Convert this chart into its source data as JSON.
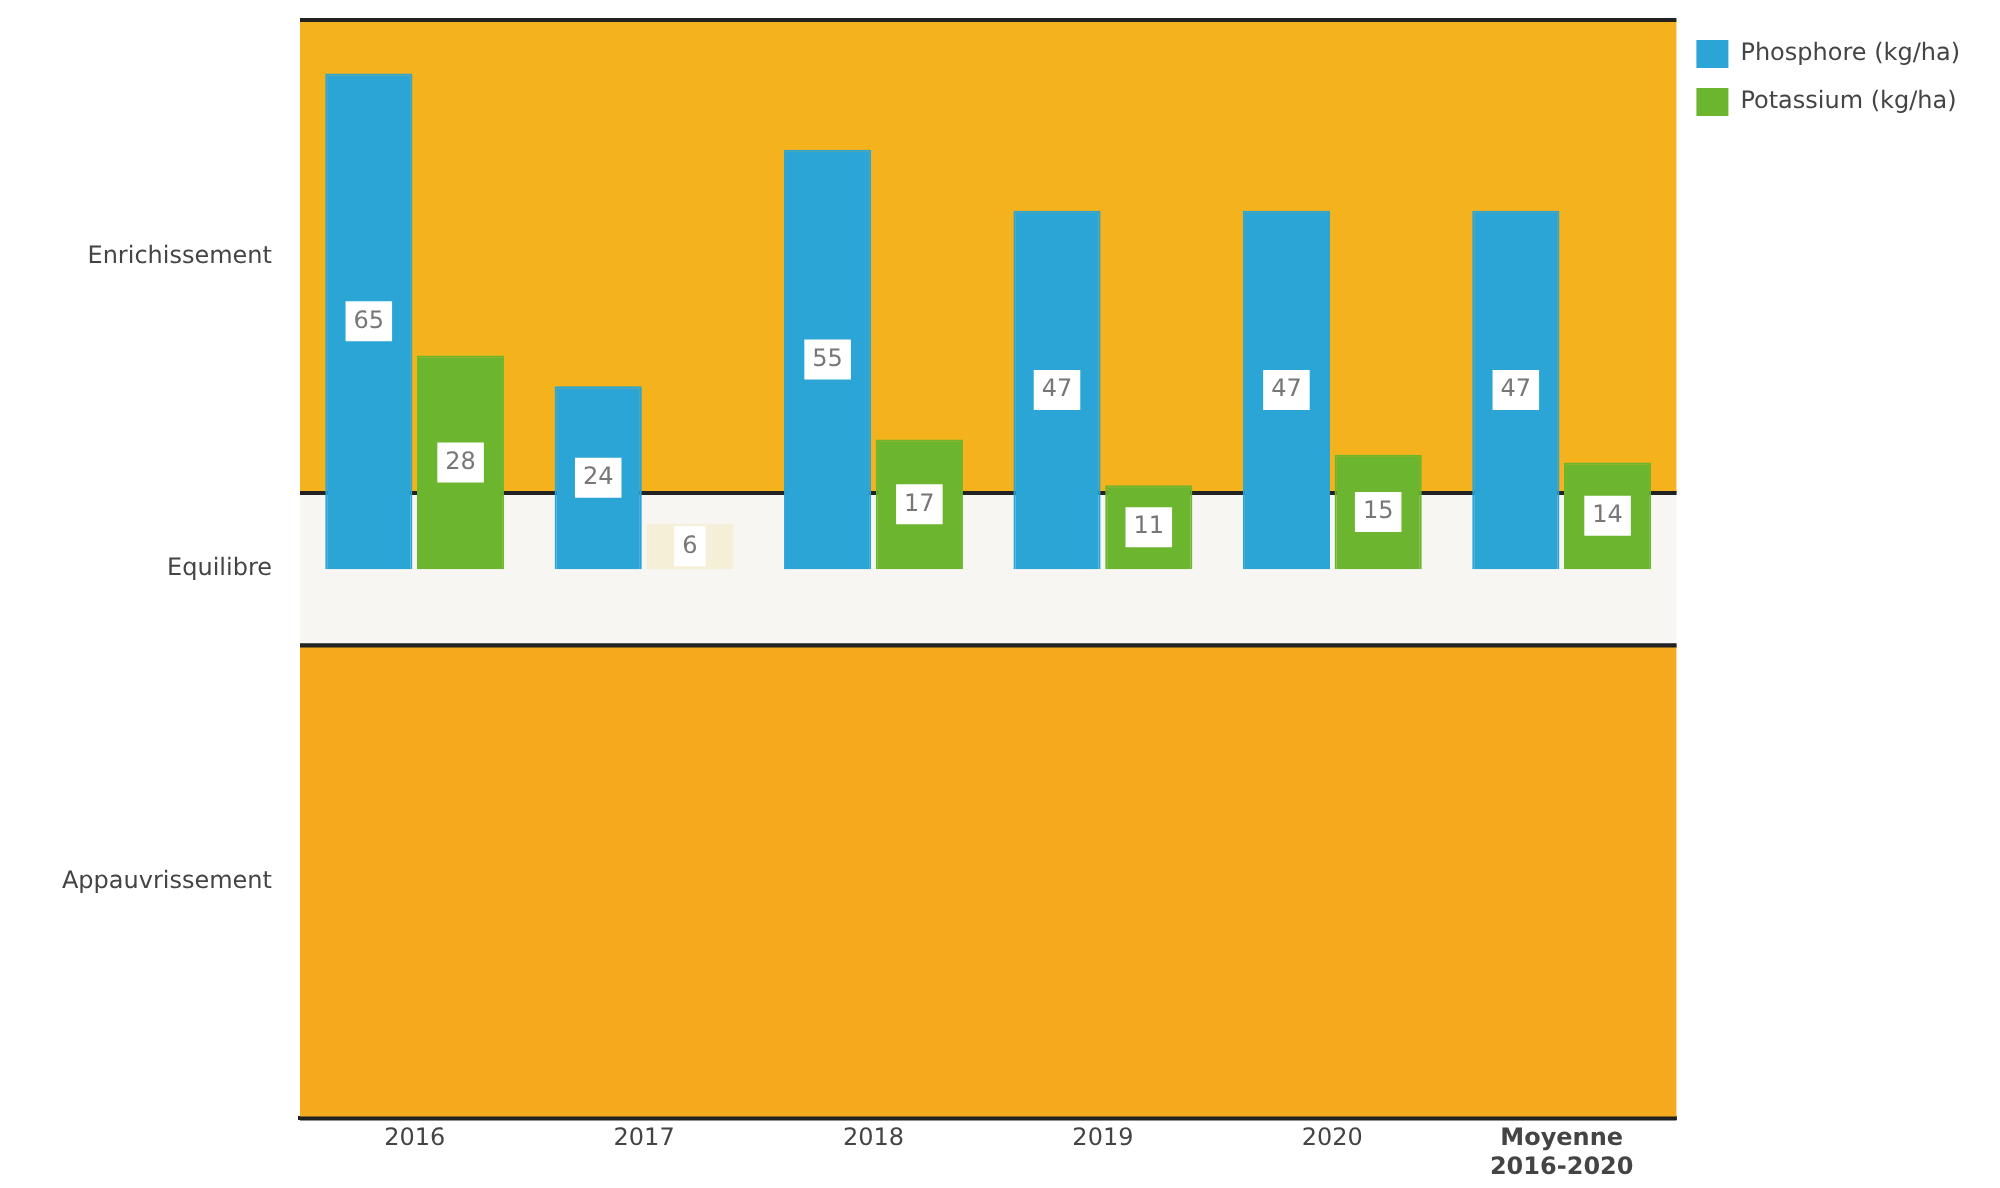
{
  "chart_data": {
    "type": "bar",
    "categories": [
      "2016",
      "2017",
      "2018",
      "2019",
      "2020",
      "Moyenne 2016-2020"
    ],
    "series": [
      {
        "name": "Phosphore (kg/ha)",
        "color": "#2aa5d5",
        "values": [
          65,
          24,
          55,
          47,
          47,
          47
        ]
      },
      {
        "name": "Potassium (kg/ha)",
        "color": "#6cb52e",
        "colors": [
          "#6cb52e",
          "#f6efd8",
          "#6cb52e",
          "#6cb52e",
          "#6cb52e",
          "#6cb52e"
        ],
        "values": [
          28,
          6,
          17,
          11,
          15,
          14
        ]
      }
    ],
    "ylim": [
      -72,
      72
    ],
    "bands": [
      {
        "axis": "y",
        "from": 10,
        "to": 72,
        "color": "#f4b31c",
        "label": "Enrichissement"
      },
      {
        "axis": "y",
        "from": -10,
        "to": 10,
        "color": "#f7f6f2",
        "label": "Equilibre"
      },
      {
        "axis": "y",
        "from": -72,
        "to": -10,
        "color": "#f5aa1e",
        "label": "Appauvrissement"
      }
    ],
    "data_labels": true,
    "grid": false,
    "legend": "top right"
  }
}
